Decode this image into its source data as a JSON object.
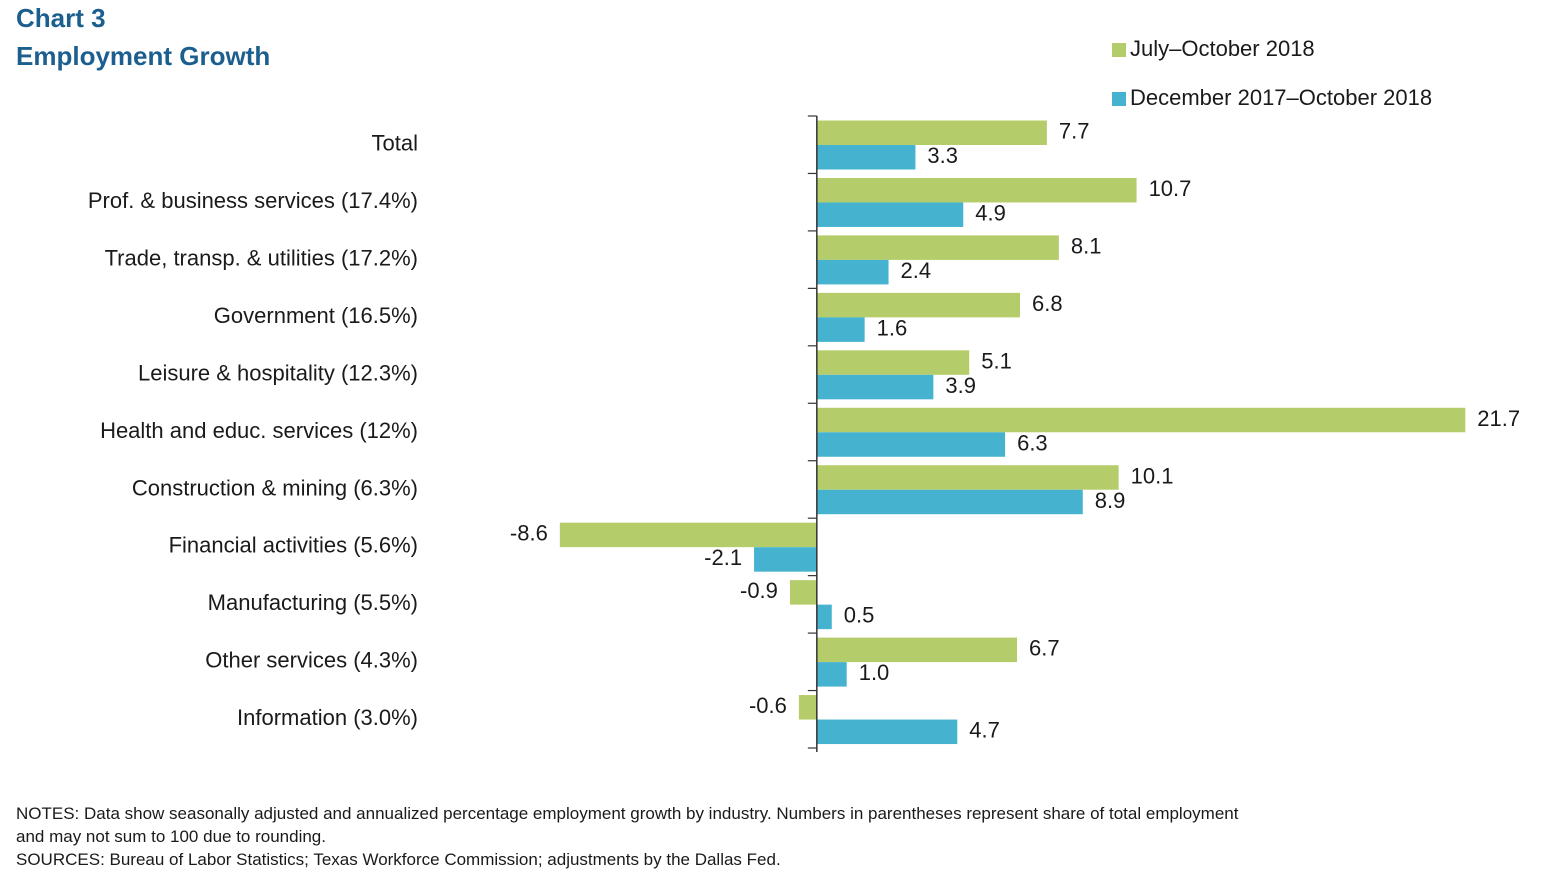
{
  "chart_data": {
    "type": "hbar",
    "title": "Chart 3",
    "subtitle": "Employment Growth",
    "categories": [
      "Total",
      "Prof. & business services (17.4%)",
      "Trade, transp. & utilities (17.2%)",
      "Government (16.5%)",
      "Leisure & hospitality (12.3%)",
      "Health and educ. services (12%)",
      "Construction & mining (6.3%)",
      "Financial activities (5.6%)",
      "Manufacturing (5.5%)",
      "Other services (4.3%)",
      "Information (3.0%)"
    ],
    "series": [
      {
        "name": "July–October 2018",
        "color": "#b5cc6a",
        "values": [
          7.7,
          10.7,
          8.1,
          6.8,
          5.1,
          21.7,
          10.1,
          -8.6,
          -0.9,
          6.7,
          -0.6
        ]
      },
      {
        "name": "December 2017–October 2018",
        "color": "#45b3cf",
        "values": [
          3.3,
          4.9,
          2.4,
          1.6,
          3.9,
          6.3,
          8.9,
          -2.1,
          0.5,
          1,
          4.7
        ],
        "value_labels": [
          "3.3",
          "4.9",
          "2.4",
          "1.6",
          "3.9",
          "6.3",
          "8.9",
          "-2.1",
          "0.5",
          "1.0",
          "4.7"
        ]
      }
    ],
    "xlim": [
      -10,
      24
    ],
    "notes": [
      "NOTES: Data show seasonally adjusted and annualized percentage employment growth by industry. Numbers in parentheses represent share of total employment",
      "and may not sum to 100 due to rounding.",
      "SOURCES: Bureau of Labor Statistics; Texas Workforce Commission; adjustments by the Dallas Fed."
    ]
  }
}
